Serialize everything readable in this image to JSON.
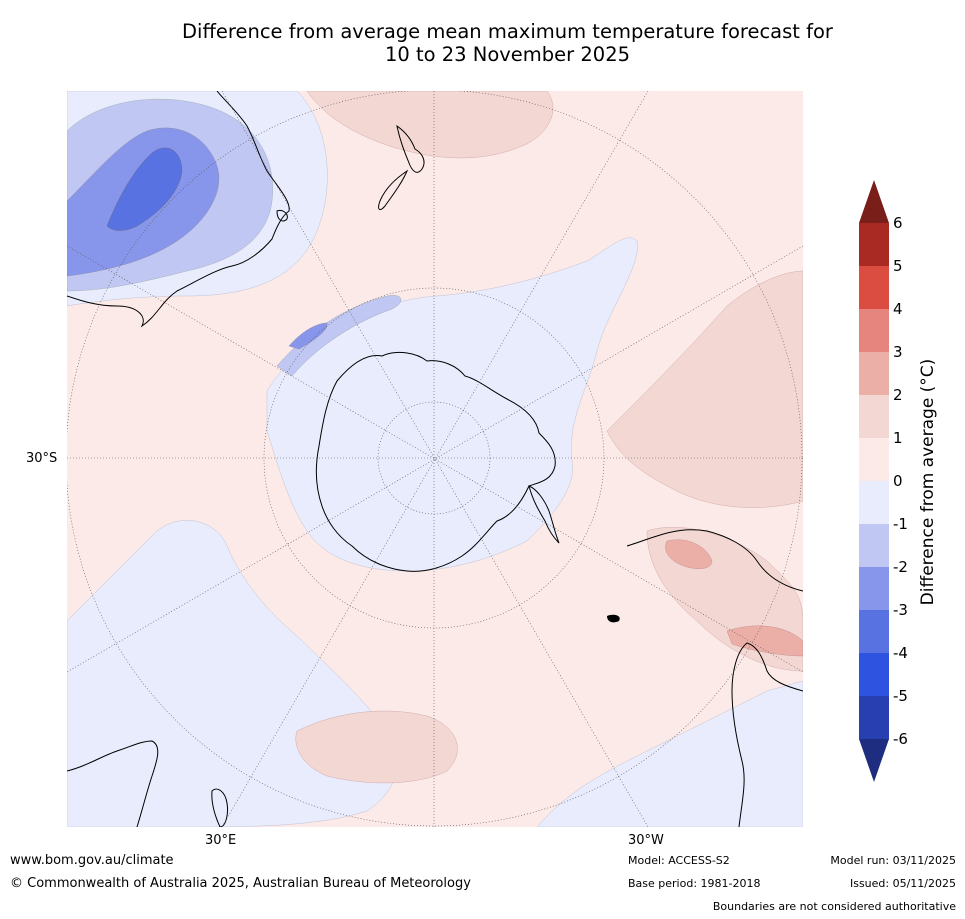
{
  "title": {
    "line1": "Difference from average mean maximum temperature forecast for",
    "line2": "10 to 23 November 2025"
  },
  "map": {
    "projection": "south-polar-stereographic",
    "lat_label": "30°S",
    "lon_labels": {
      "left": "30°E",
      "right": "30°W"
    },
    "land_outline_color": "#000000",
    "graticule_color": "#555555",
    "regions_depicted": [
      "Australia",
      "New Zealand",
      "Antarctica",
      "South America",
      "Africa"
    ]
  },
  "legend": {
    "label": "Difference from average (°C)",
    "ticks": [
      "6",
      "5",
      "4",
      "3",
      "2",
      "1",
      "0",
      "-1",
      "-2",
      "-3",
      "-4",
      "-5",
      "-6"
    ],
    "bins": [
      {
        "range": "> 6",
        "color": "#7a1e1a"
      },
      {
        "range": "5 to 6",
        "color": "#a92a23"
      },
      {
        "range": "4 to 5",
        "color": "#db4c41"
      },
      {
        "range": "3 to 4",
        "color": "#e6857d"
      },
      {
        "range": "2 to 3",
        "color": "#ebafa8"
      },
      {
        "range": "1 to 2",
        "color": "#f3d7d3"
      },
      {
        "range": "0 to 1",
        "color": "#fbeae8"
      },
      {
        "range": "-1 to 0",
        "color": "#e8ecfc"
      },
      {
        "range": "-2 to -1",
        "color": "#bfc7f2"
      },
      {
        "range": "-3 to -2",
        "color": "#8796ea"
      },
      {
        "range": "-4 to -3",
        "color": "#5872e2"
      },
      {
        "range": "-5 to -4",
        "color": "#2d53e0"
      },
      {
        "range": "-6 to -5",
        "color": "#273fb0"
      },
      {
        "range": "< -6",
        "color": "#1f2d80"
      }
    ]
  },
  "footer": {
    "website": "www.bom.gov.au/climate",
    "copyright": "© Commonwealth of Australia 2025, Australian Bureau of Meteorology",
    "model": "Model: ACCESS-S2",
    "base_period": "Base period: 1981-2018",
    "model_run": "Model run: 03/11/2025",
    "issued": "Issued: 05/11/2025",
    "disclaimer": "Boundaries are not considered authoritative"
  }
}
